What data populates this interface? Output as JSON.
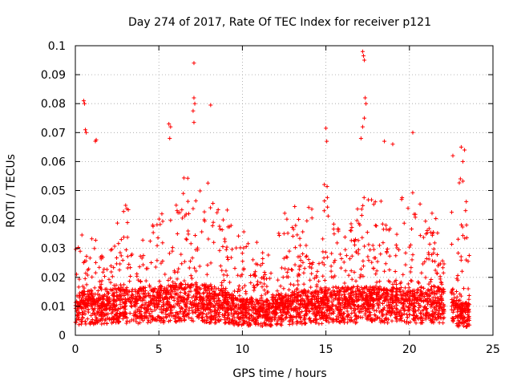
{
  "chart_data": {
    "type": "scatter",
    "title": "Day 274 of 2017, Rate Of TEC Index for receiver p121",
    "xlabel": "GPS time / hours",
    "ylabel": "ROTI / TECUs",
    "xlim": [
      0,
      25
    ],
    "ylim": [
      0,
      0.1
    ],
    "x_ticks": [
      0,
      5,
      10,
      15,
      20,
      25
    ],
    "y_ticks": [
      0,
      0.01,
      0.02,
      0.03,
      0.04,
      0.05,
      0.06,
      0.07,
      0.08,
      0.09,
      0.1
    ],
    "x_tick_labels": [
      "0",
      "5",
      "10",
      "15",
      "20",
      "25"
    ],
    "y_tick_labels": [
      "0",
      "0.01",
      "0.02",
      "0.03",
      "0.04",
      "0.05",
      "0.06",
      "0.07",
      "0.08",
      "0.09",
      "0.1"
    ],
    "grid": true,
    "legend": "none",
    "marker": "plus",
    "color": "#ff0000",
    "envelope": {
      "hours": [
        0,
        0.5,
        1,
        1.5,
        2,
        2.5,
        3,
        3.5,
        4,
        4.5,
        5,
        5.5,
        6,
        6.5,
        7,
        7.5,
        8,
        8.5,
        9,
        9.5,
        10,
        10.5,
        11,
        11.5,
        12,
        12.5,
        13,
        13.5,
        14,
        14.5,
        15,
        15.5,
        16,
        16.5,
        17,
        17.5,
        18,
        18.5,
        19,
        19.5,
        20,
        20.5,
        21,
        21.5,
        22,
        22.5,
        23,
        23.5
      ],
      "baseline": [
        0.01,
        0.011,
        0.011,
        0.01,
        0.011,
        0.012,
        0.012,
        0.011,
        0.012,
        0.012,
        0.012,
        0.012,
        0.013,
        0.013,
        0.013,
        0.013,
        0.012,
        0.012,
        0.011,
        0.01,
        0.009,
        0.009,
        0.009,
        0.009,
        0.01,
        0.01,
        0.011,
        0.011,
        0.011,
        0.011,
        0.012,
        0.012,
        0.012,
        0.012,
        0.012,
        0.012,
        0.012,
        0.012,
        0.012,
        0.012,
        0.012,
        0.012,
        0.012,
        0.012,
        0.012,
        0.012,
        0.008,
        0.008
      ],
      "upper": [
        0.03,
        0.04,
        0.035,
        0.03,
        0.03,
        0.045,
        0.05,
        0.04,
        0.035,
        0.045,
        0.04,
        0.05,
        0.045,
        0.055,
        0.06,
        0.05,
        0.055,
        0.05,
        0.045,
        0.04,
        0.035,
        0.04,
        0.03,
        0.03,
        0.03,
        0.045,
        0.045,
        0.045,
        0.05,
        0.04,
        0.055,
        0.04,
        0.035,
        0.04,
        0.045,
        0.05,
        0.05,
        0.045,
        0.04,
        0.05,
        0.05,
        0.05,
        0.04,
        0.045,
        0.025,
        0.05,
        0.06,
        0.06
      ]
    },
    "outliers": [
      [
        0.5,
        0.081
      ],
      [
        0.55,
        0.08
      ],
      [
        0.6,
        0.071
      ],
      [
        0.65,
        0.07
      ],
      [
        1.2,
        0.067
      ],
      [
        1.25,
        0.0675
      ],
      [
        5.6,
        0.073
      ],
      [
        5.7,
        0.072
      ],
      [
        5.65,
        0.068
      ],
      [
        7.1,
        0.094
      ],
      [
        7.1,
        0.082
      ],
      [
        7.15,
        0.08
      ],
      [
        7.05,
        0.0775
      ],
      [
        7.1,
        0.0735
      ],
      [
        8.1,
        0.0795
      ],
      [
        15.0,
        0.0715
      ],
      [
        15.05,
        0.067
      ],
      [
        17.2,
        0.098
      ],
      [
        17.25,
        0.0965
      ],
      [
        17.3,
        0.095
      ],
      [
        17.35,
        0.082
      ],
      [
        17.4,
        0.08
      ],
      [
        17.3,
        0.075
      ],
      [
        17.2,
        0.072
      ],
      [
        17.1,
        0.068
      ],
      [
        18.5,
        0.067
      ],
      [
        19.0,
        0.066
      ],
      [
        20.2,
        0.07
      ],
      [
        22.6,
        0.062
      ],
      [
        23.1,
        0.065
      ],
      [
        23.3,
        0.064
      ],
      [
        23.2,
        0.06
      ]
    ]
  }
}
